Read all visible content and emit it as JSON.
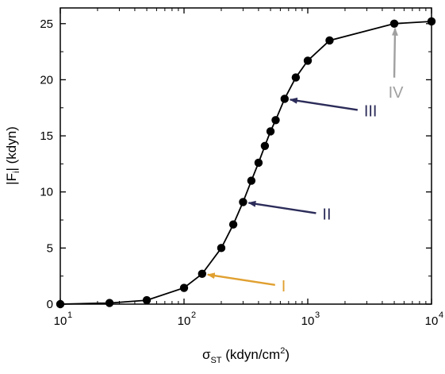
{
  "chart_data": {
    "type": "line",
    "xscale": "log",
    "xlim": [
      10,
      10000
    ],
    "ylim": [
      0,
      26.4
    ],
    "xlabel": {
      "main": "σ",
      "sub": "ST",
      "rest": " (kdyn/cm",
      "sup": "2",
      "close": ")"
    },
    "ylabel": {
      "main": "|F",
      "sub": "i",
      "rest": "| (kdyn)"
    },
    "x_ticks": [
      {
        "value": 10,
        "base": "10",
        "exp": "1"
      },
      {
        "value": 100,
        "base": "10",
        "exp": "2"
      },
      {
        "value": 1000,
        "base": "10",
        "exp": "3"
      },
      {
        "value": 10000,
        "base": "10",
        "exp": "4"
      }
    ],
    "y_ticks": [
      0,
      5,
      10,
      15,
      20,
      25
    ],
    "grid": false,
    "series": [
      {
        "color": "#000000",
        "x": [
          10,
          25,
          50,
          100,
          140,
          200,
          250,
          300,
          350,
          400,
          450,
          500,
          550,
          650,
          800,
          1000,
          1500,
          5000,
          10000
        ],
        "y": [
          0.0,
          0.1,
          0.35,
          1.45,
          2.7,
          5.0,
          7.1,
          9.1,
          11.0,
          12.6,
          14.1,
          15.4,
          16.4,
          18.3,
          20.2,
          21.7,
          23.5,
          25.0,
          25.2
        ]
      }
    ],
    "annotations": [
      {
        "text": "I",
        "color": "#e0a030",
        "x": 140,
        "y": 2.7
      },
      {
        "text": "II",
        "color": "#2c2c5a",
        "x": 300,
        "y": 9.1
      },
      {
        "text": "III",
        "color": "#2c2c5a",
        "x": 650,
        "y": 18.3
      },
      {
        "text": "IV",
        "color": "#a0a0a0",
        "x": 5000,
        "y": 25.0
      }
    ]
  }
}
